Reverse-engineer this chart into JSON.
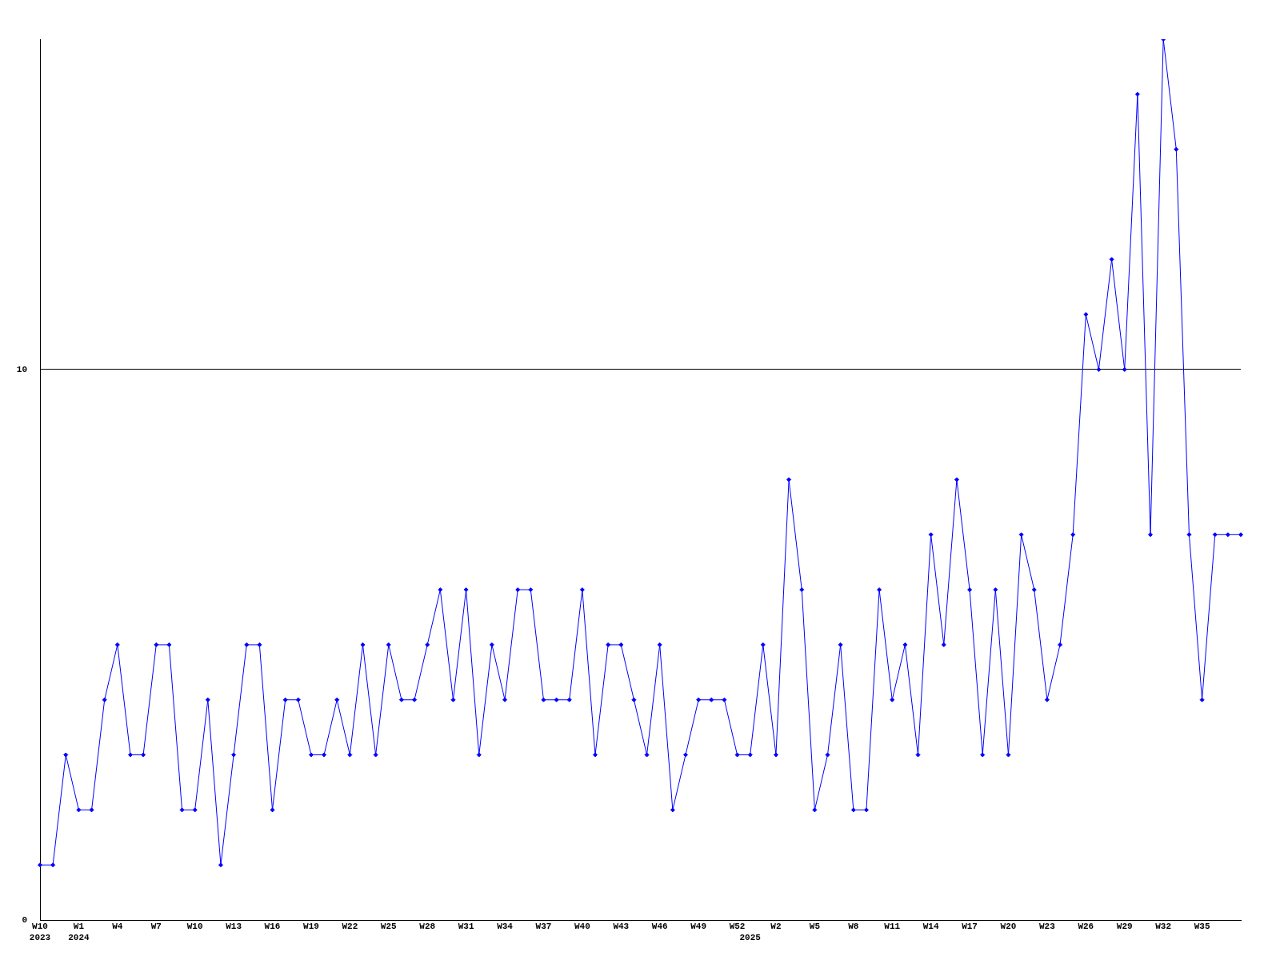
{
  "chart_data": {
    "type": "line",
    "categories": [
      "W10\n2023",
      null,
      null,
      "W1\n2024",
      null,
      null,
      "W4",
      null,
      null,
      "W7",
      null,
      null,
      "W10",
      null,
      null,
      "W13",
      null,
      null,
      "W16",
      null,
      null,
      "W19",
      null,
      null,
      "W22",
      null,
      null,
      "W25",
      null,
      null,
      "W28",
      null,
      null,
      "W31",
      null,
      null,
      "W34",
      null,
      null,
      "W37",
      null,
      null,
      "W40",
      null,
      null,
      "W43",
      null,
      null,
      "W46",
      null,
      null,
      "W49",
      null,
      null,
      "W52",
      "\n2025",
      null,
      "W2",
      null,
      null,
      "W5",
      null,
      null,
      "W8",
      null,
      null,
      "W11",
      null,
      null,
      "W14",
      null,
      null,
      "W17",
      null,
      null,
      "W20",
      null,
      null,
      "W23",
      null,
      null,
      "W26",
      null,
      null,
      "W29",
      null,
      null,
      "W32",
      null,
      null,
      "W35",
      null,
      null,
      null
    ],
    "series": [
      {
        "color": "#0000ff",
        "values": [
          1,
          1,
          3,
          2,
          2,
          4,
          5,
          3,
          3,
          5,
          5,
          2,
          2,
          4,
          1,
          3,
          5,
          5,
          2,
          4,
          4,
          3,
          3,
          4,
          3,
          5,
          3,
          5,
          4,
          4,
          5,
          6,
          4,
          6,
          3,
          5,
          4,
          6,
          6,
          4,
          4,
          4,
          6,
          3,
          5,
          5,
          4,
          3,
          5,
          2,
          3,
          4,
          4,
          4,
          3,
          3,
          5,
          3,
          8,
          6,
          2,
          3,
          5,
          2,
          2,
          6,
          4,
          5,
          3,
          7,
          5,
          8,
          6,
          3,
          6,
          3,
          7,
          6,
          4,
          5,
          7,
          11,
          10,
          12,
          10,
          15,
          7,
          16,
          14,
          7,
          4,
          7,
          7,
          7
        ]
      }
    ],
    "ylim": [
      0,
      16
    ],
    "yticks": [
      0,
      10
    ],
    "grid": "y",
    "legend": false,
    "marker": "diamond",
    "line_style": "solid"
  }
}
